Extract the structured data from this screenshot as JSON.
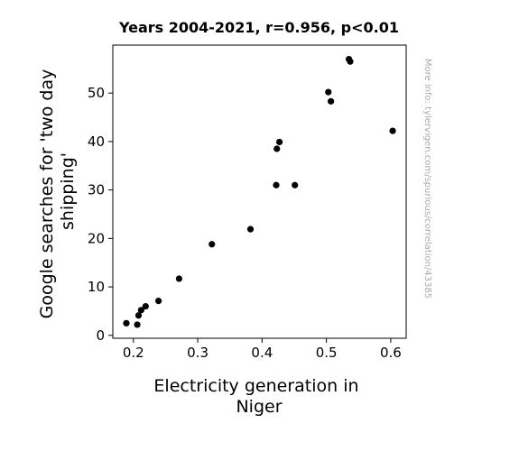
{
  "chart_data": {
    "type": "scatter",
    "title": "Years 2004-2021, r=0.956, p<0.01",
    "xlabel_lines": [
      "Electricity generation in",
      "Niger"
    ],
    "ylabel_lines": [
      "Google searches for 'two day",
      "shipping'"
    ],
    "xlim": [
      0.168,
      0.624
    ],
    "ylim": [
      -0.6,
      59.9
    ],
    "x_ticks": [
      {
        "value": 0.2,
        "label": "0.2"
      },
      {
        "value": 0.3,
        "label": "0.3"
      },
      {
        "value": 0.4,
        "label": "0.4"
      },
      {
        "value": 0.5,
        "label": "0.5"
      },
      {
        "value": 0.6,
        "label": "0.6"
      }
    ],
    "y_ticks": [
      {
        "value": 0,
        "label": "0"
      },
      {
        "value": 10,
        "label": "10"
      },
      {
        "value": 20,
        "label": "20"
      },
      {
        "value": 30,
        "label": "30"
      },
      {
        "value": 40,
        "label": "40"
      },
      {
        "value": 50,
        "label": "50"
      }
    ],
    "points": [
      {
        "x": 0.189,
        "y": 2.5
      },
      {
        "x": 0.206,
        "y": 2.2
      },
      {
        "x": 0.208,
        "y": 4.1
      },
      {
        "x": 0.212,
        "y": 5.2
      },
      {
        "x": 0.219,
        "y": 6.0
      },
      {
        "x": 0.239,
        "y": 7.1
      },
      {
        "x": 0.271,
        "y": 11.7
      },
      {
        "x": 0.322,
        "y": 18.8
      },
      {
        "x": 0.382,
        "y": 21.9
      },
      {
        "x": 0.422,
        "y": 31.0
      },
      {
        "x": 0.423,
        "y": 38.5
      },
      {
        "x": 0.427,
        "y": 39.9
      },
      {
        "x": 0.451,
        "y": 31.0
      },
      {
        "x": 0.503,
        "y": 50.2
      },
      {
        "x": 0.507,
        "y": 48.3
      },
      {
        "x": 0.535,
        "y": 57.0
      },
      {
        "x": 0.537,
        "y": 56.5
      },
      {
        "x": 0.603,
        "y": 42.2
      }
    ],
    "marker_color": "#000000",
    "grid": false
  },
  "side_note": "More info: tylervigen.com/spurious/correlation/43385"
}
